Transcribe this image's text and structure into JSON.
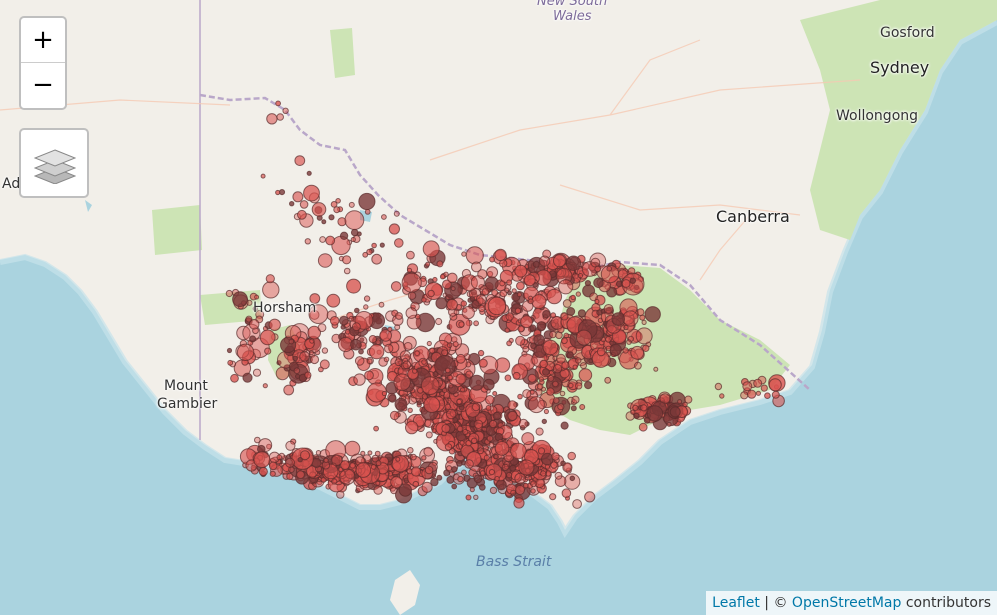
{
  "map": {
    "places": [
      {
        "name": "Sydney",
        "big": true
      },
      {
        "name": "Gosford",
        "big": false
      },
      {
        "name": "Wollongong",
        "big": false
      },
      {
        "name": "Canberra",
        "big": true
      },
      {
        "name": "Horsham",
        "big": false
      },
      {
        "name": "Mount",
        "big": false
      },
      {
        "name": "Gambier",
        "big": false
      },
      {
        "name": "Ad",
        "big": false
      }
    ],
    "region_label": [
      "New South",
      "Wales"
    ],
    "water_label": "Bass Strait",
    "marker_color": "#d9534f",
    "marker_stroke": "#5a2b2b"
  },
  "controls": {
    "zoom_in": "+",
    "zoom_out": "−",
    "layers_icon": "layers-icon"
  },
  "attribution": {
    "leaflet": "Leaflet",
    "separator": " | © ",
    "osm": "OpenStreetMap",
    "contributors": " contributors"
  }
}
